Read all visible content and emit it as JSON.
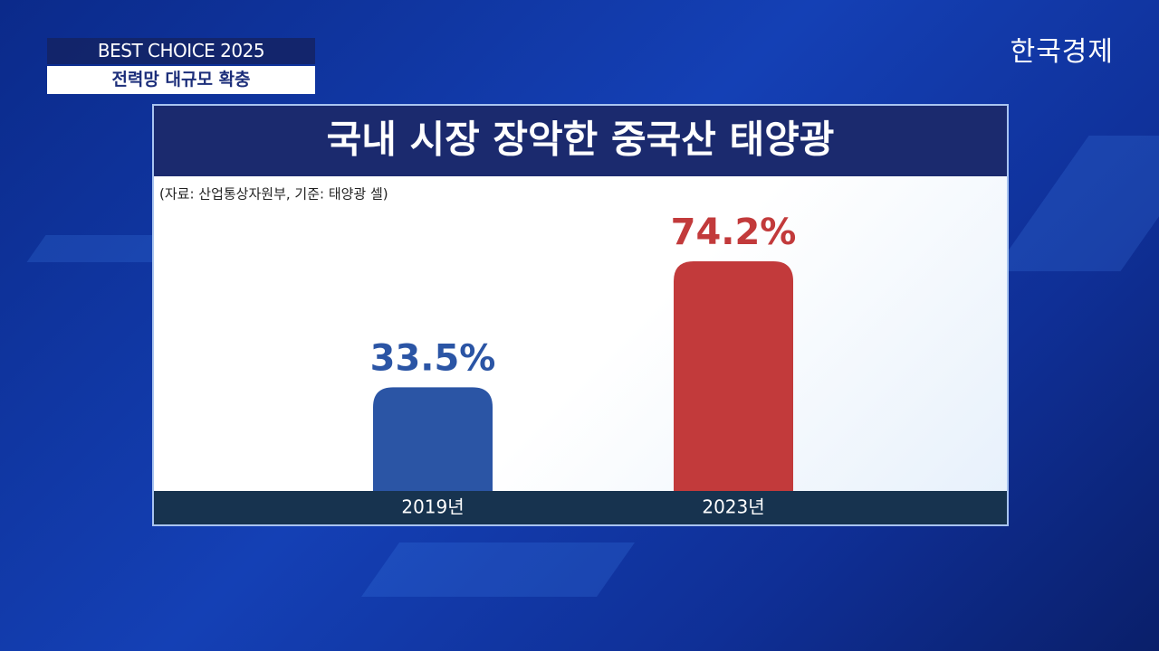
{
  "program": {
    "title": "BEST CHOICE 2025",
    "topic": "전력망 대규모 확충"
  },
  "logo": "한국경제",
  "chart_data": {
    "type": "bar",
    "title": "국내 시장 장악한 중국산 태양광",
    "source": "(자료: 산업통상자원부, 기준: 태양광 셀)",
    "categories": [
      "2019년",
      "2023년"
    ],
    "values": [
      33.5,
      74.2
    ],
    "value_labels": [
      "33.5%",
      "74.2%"
    ],
    "colors": [
      "#2b55a5",
      "#c23a3b"
    ]
  }
}
